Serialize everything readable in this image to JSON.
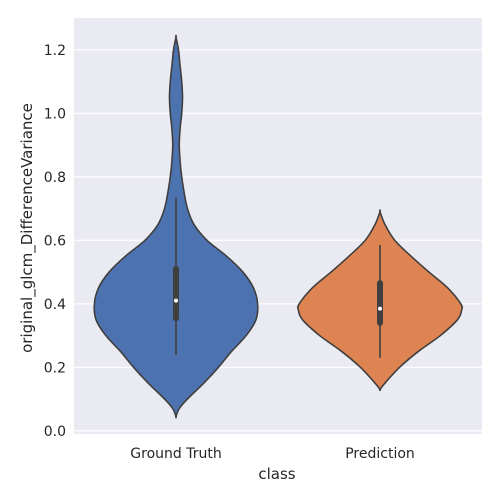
{
  "chart_data": {
    "type": "violin",
    "xlabel": "class",
    "ylabel": "original_glcm_DifferenceVariance",
    "ylim": [
      -0.01,
      1.3
    ],
    "yticks": [
      "0.0",
      "0.2",
      "0.4",
      "0.6",
      "0.8",
      "1.0",
      "1.2"
    ],
    "grid": true,
    "background": "#eaeaf2",
    "categories": [
      "Ground Truth",
      "Prediction"
    ],
    "violins": [
      {
        "category": "Ground Truth",
        "color": "#4c72b0",
        "kde_min": 0.045,
        "kde_max": 1.24,
        "median": 0.41,
        "q1": 0.355,
        "q3": 0.51,
        "whisker_low": 0.24,
        "whisker_high": 0.735,
        "density": [
          [
            0.045,
            0.0
          ],
          [
            0.07,
            0.04
          ],
          [
            0.1,
            0.14
          ],
          [
            0.15,
            0.34
          ],
          [
            0.2,
            0.52
          ],
          [
            0.25,
            0.68
          ],
          [
            0.3,
            0.86
          ],
          [
            0.35,
            0.98
          ],
          [
            0.4,
            1.0
          ],
          [
            0.45,
            0.95
          ],
          [
            0.5,
            0.82
          ],
          [
            0.55,
            0.62
          ],
          [
            0.6,
            0.38
          ],
          [
            0.65,
            0.22
          ],
          [
            0.7,
            0.14
          ],
          [
            0.75,
            0.1
          ],
          [
            0.8,
            0.07
          ],
          [
            0.85,
            0.05
          ],
          [
            0.9,
            0.04
          ],
          [
            0.95,
            0.05
          ],
          [
            1.0,
            0.07
          ],
          [
            1.05,
            0.08
          ],
          [
            1.1,
            0.07
          ],
          [
            1.15,
            0.05
          ],
          [
            1.2,
            0.03
          ],
          [
            1.24,
            0.0
          ]
        ]
      },
      {
        "category": "Prediction",
        "color": "#dd8452",
        "kde_min": 0.13,
        "kde_max": 0.69,
        "median": 0.385,
        "q1": 0.34,
        "q3": 0.465,
        "whisker_low": 0.23,
        "whisker_high": 0.585,
        "density": [
          [
            0.13,
            0.0
          ],
          [
            0.15,
            0.06
          ],
          [
            0.2,
            0.24
          ],
          [
            0.25,
            0.47
          ],
          [
            0.3,
            0.74
          ],
          [
            0.35,
            0.95
          ],
          [
            0.38,
            1.0
          ],
          [
            0.4,
            0.99
          ],
          [
            0.45,
            0.83
          ],
          [
            0.5,
            0.6
          ],
          [
            0.55,
            0.38
          ],
          [
            0.6,
            0.18
          ],
          [
            0.65,
            0.06
          ],
          [
            0.69,
            0.0
          ]
        ]
      }
    ]
  }
}
